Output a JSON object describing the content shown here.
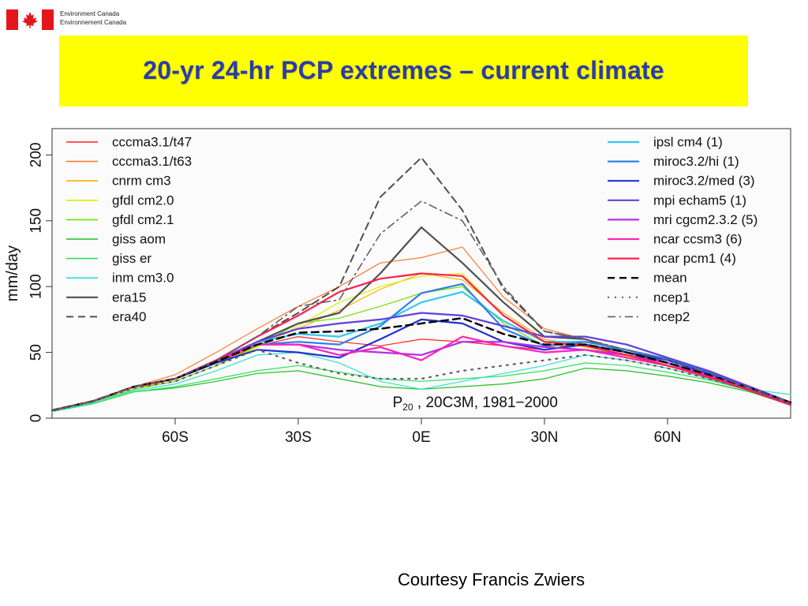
{
  "header": {
    "department_line1": "Environment Canada",
    "department_line2": "Environnement Canada"
  },
  "slide": {
    "title": "20-yr 24-hr PCP extremes – current climate",
    "credit": "Courtesy Francis Zwiers"
  },
  "colors": {
    "banner": "#ffff00",
    "title": "#2b3ca8",
    "flag_red": "#e3161c"
  },
  "chart_data": {
    "type": "line",
    "xlabel": "",
    "ylabel": "mm/day",
    "annotation_main": "P",
    "annotation_sub": "20",
    "annotation_rest": " , 20C3M, 1981−2000",
    "xlim": [
      -90,
      90
    ],
    "ylim": [
      0,
      220
    ],
    "x_ticks": [
      -60,
      -30,
      0,
      30,
      60
    ],
    "x_tick_labels": [
      "60S",
      "30S",
      "0E",
      "30N",
      "60N"
    ],
    "y_ticks": [
      0,
      50,
      100,
      150,
      200
    ],
    "y_tick_labels": [
      "0",
      "50",
      "100",
      "150",
      "200"
    ],
    "grid": false,
    "legend_left": "top-left",
    "legend_right": "top-right",
    "x": [
      -90,
      -80,
      -70,
      -60,
      -50,
      -40,
      -30,
      -20,
      -10,
      0,
      10,
      20,
      30,
      40,
      50,
      60,
      70,
      80,
      90
    ],
    "series": [
      {
        "name": "cccma3.1/t47",
        "color": "#ff2020",
        "style": "solid",
        "width": 1.2,
        "values": [
          5,
          12,
          22,
          30,
          42,
          55,
          62,
          58,
          55,
          60,
          58,
          55,
          52,
          58,
          52,
          42,
          32,
          22,
          10
        ]
      },
      {
        "name": "cccma3.1/t63",
        "color": "#ff7a30",
        "style": "solid",
        "width": 1.2,
        "values": [
          6,
          13,
          24,
          33,
          50,
          68,
          85,
          100,
          118,
          122,
          130,
          92,
          68,
          60,
          52,
          44,
          34,
          23,
          12
        ]
      },
      {
        "name": "cnrm cm3",
        "color": "#ffb000",
        "style": "solid",
        "width": 1.2,
        "values": [
          5,
          12,
          22,
          30,
          42,
          56,
          68,
          82,
          98,
          110,
          105,
          80,
          60,
          55,
          48,
          40,
          31,
          21,
          10
        ]
      },
      {
        "name": "gfdl cm2.0",
        "color": "#d8f000",
        "style": "solid",
        "width": 1.2,
        "values": [
          5,
          12,
          22,
          28,
          40,
          54,
          70,
          88,
          100,
          108,
          110,
          78,
          58,
          54,
          47,
          40,
          31,
          21,
          10
        ]
      },
      {
        "name": "gfdl cm2.1",
        "color": "#70e000",
        "style": "solid",
        "width": 1.2,
        "values": [
          5,
          12,
          22,
          28,
          40,
          55,
          72,
          76,
          85,
          95,
          100,
          72,
          55,
          52,
          46,
          40,
          31,
          21,
          10
        ]
      },
      {
        "name": "giss aom",
        "color": "#20c020",
        "style": "solid",
        "width": 1.2,
        "values": [
          5,
          11,
          20,
          23,
          28,
          34,
          36,
          30,
          24,
          22,
          24,
          26,
          30,
          38,
          36,
          32,
          27,
          20,
          10
        ]
      },
      {
        "name": "giss er",
        "color": "#30e060",
        "style": "solid",
        "width": 1.2,
        "values": [
          5,
          11,
          20,
          24,
          30,
          36,
          40,
          35,
          30,
          28,
          30,
          32,
          36,
          42,
          40,
          35,
          29,
          21,
          10
        ]
      },
      {
        "name": "inm cm3.0",
        "color": "#30e0d0",
        "style": "solid",
        "width": 1.2,
        "values": [
          5,
          12,
          21,
          26,
          36,
          48,
          50,
          42,
          28,
          22,
          28,
          34,
          40,
          48,
          44,
          38,
          30,
          22,
          18
        ]
      },
      {
        "name": "era15",
        "color": "#505050",
        "style": "solid",
        "width": 2.2,
        "values": [
          6,
          13,
          24,
          30,
          42,
          58,
          72,
          80,
          110,
          145,
          118,
          88,
          62,
          60,
          50,
          42,
          32,
          22,
          11
        ]
      },
      {
        "name": "era40",
        "color": "#505050",
        "style": "dashed",
        "width": 2,
        "values": [
          6,
          13,
          24,
          30,
          44,
          62,
          80,
          100,
          168,
          198,
          158,
          98,
          66,
          60,
          50,
          42,
          32,
          22,
          11
        ]
      },
      {
        "name": "ipsl cm4 (1)",
        "color": "#30c8f0",
        "style": "solid",
        "width": 2.2,
        "values": [
          6,
          13,
          24,
          30,
          44,
          58,
          64,
          62,
          72,
          88,
          96,
          74,
          58,
          58,
          52,
          44,
          34,
          23,
          12
        ]
      },
      {
        "name": "miroc3.2/hi (1)",
        "color": "#3080e8",
        "style": "solid",
        "width": 2.2,
        "values": [
          6,
          13,
          24,
          30,
          44,
          56,
          58,
          56,
          70,
          95,
          102,
          68,
          55,
          58,
          52,
          45,
          35,
          24,
          12
        ]
      },
      {
        "name": "miroc3.2/med (3)",
        "color": "#2030d0",
        "style": "solid",
        "width": 2.2,
        "values": [
          6,
          13,
          24,
          30,
          42,
          52,
          50,
          46,
          60,
          75,
          72,
          58,
          52,
          56,
          50,
          44,
          34,
          23,
          12
        ]
      },
      {
        "name": "mpi echam5 (1)",
        "color": "#6040e0",
        "style": "solid",
        "width": 2.2,
        "values": [
          6,
          13,
          24,
          30,
          44,
          58,
          68,
          72,
          75,
          80,
          78,
          70,
          62,
          62,
          56,
          46,
          36,
          24,
          12
        ]
      },
      {
        "name": "mri cgcm2.3.2 (5)",
        "color": "#b030e8",
        "style": "solid",
        "width": 2.2,
        "values": [
          6,
          13,
          24,
          30,
          44,
          56,
          56,
          52,
          50,
          48,
          58,
          58,
          54,
          52,
          48,
          42,
          33,
          23,
          12
        ]
      },
      {
        "name": "ncar ccsm3 (6)",
        "color": "#ff20c0",
        "style": "solid",
        "width": 2.2,
        "values": [
          6,
          13,
          24,
          30,
          44,
          56,
          56,
          48,
          54,
          44,
          62,
          55,
          50,
          52,
          46,
          40,
          32,
          22,
          11
        ]
      },
      {
        "name": "ncar pcm1 (4)",
        "color": "#ff2050",
        "style": "solid",
        "width": 2.2,
        "values": [
          6,
          13,
          24,
          30,
          44,
          62,
          78,
          96,
          106,
          110,
          108,
          78,
          58,
          55,
          48,
          40,
          31,
          21,
          10
        ]
      },
      {
        "name": "mean",
        "color": "#000000",
        "style": "dashed",
        "width": 2.4,
        "values": [
          6,
          13,
          24,
          30,
          43,
          56,
          65,
          66,
          68,
          72,
          76,
          64,
          56,
          56,
          50,
          42,
          33,
          23,
          12
        ]
      },
      {
        "name": "ncep1",
        "color": "#606060",
        "style": "dotted",
        "width": 2.2,
        "values": [
          6,
          13,
          23,
          28,
          40,
          52,
          42,
          34,
          30,
          30,
          36,
          40,
          44,
          48,
          44,
          38,
          30,
          22,
          10
        ]
      },
      {
        "name": "ncep2",
        "color": "#606060",
        "style": "dashdot",
        "width": 1.6,
        "values": [
          6,
          13,
          24,
          30,
          44,
          62,
          85,
          90,
          140,
          165,
          150,
          100,
          66,
          60,
          52,
          44,
          34,
          23,
          12
        ]
      }
    ]
  }
}
